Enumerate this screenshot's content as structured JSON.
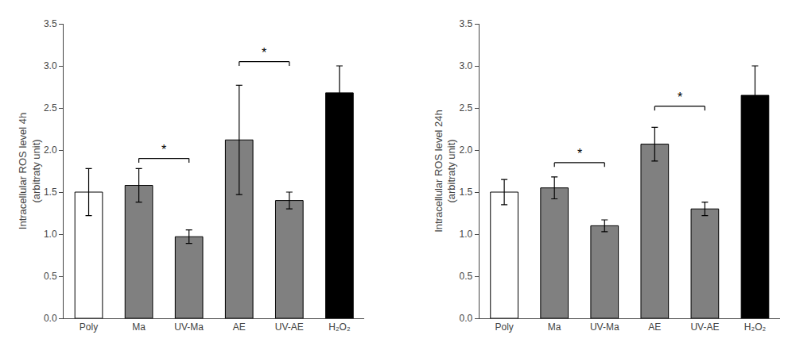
{
  "chart_data": [
    {
      "type": "bar",
      "y_label": "Intracellular ROS level 4h\n(arbitraty unit)",
      "categories": [
        "Poly",
        "Ma",
        "UV-Ma",
        "AE",
        "UV-AE",
        "H₂O₂"
      ],
      "values": [
        1.5,
        1.58,
        0.97,
        2.12,
        1.4,
        2.68
      ],
      "errors": [
        0.28,
        0.2,
        0.08,
        0.65,
        0.1,
        0.32
      ],
      "colors": [
        "#ffffff",
        "#808080",
        "#808080",
        "#808080",
        "#808080",
        "#000000"
      ],
      "ylim": [
        0,
        3.5
      ],
      "yticks": [
        {
          "value": 0,
          "label": "0.0"
        },
        0.5,
        {
          "value": 1,
          "label": "1.0"
        },
        1.5,
        {
          "value": 2,
          "label": "2.0"
        },
        2.5,
        {
          "value": 3,
          "label": "3.0"
        },
        3.5
      ],
      "grid": false,
      "annotations": [
        {
          "text": "*",
          "from": "Ma",
          "to": "UV-Ma",
          "y": 1.9
        },
        {
          "text": "*",
          "from": "AE",
          "to": "UV-AE",
          "y": 3.05
        }
      ]
    },
    {
      "type": "bar",
      "y_label": "Intracellular ROS level 24h\n(arbitraty unit)",
      "categories": [
        "Poly",
        "Ma",
        "UV-Ma",
        "AE",
        "UV-AE",
        "H₂O₂"
      ],
      "values": [
        1.5,
        1.55,
        1.1,
        2.07,
        1.3,
        2.65
      ],
      "errors": [
        0.15,
        0.13,
        0.07,
        0.2,
        0.08,
        0.35
      ],
      "colors": [
        "#ffffff",
        "#808080",
        "#808080",
        "#808080",
        "#808080",
        "#000000"
      ],
      "ylim": [
        0,
        3.5
      ],
      "yticks": [
        {
          "value": 0,
          "label": "0.0"
        },
        0.5,
        {
          "value": 1,
          "label": "1.0"
        },
        1.5,
        {
          "value": 2,
          "label": "2.0"
        },
        2.5,
        {
          "value": 3,
          "label": "3.0"
        },
        3.5
      ],
      "grid": false,
      "annotations": [
        {
          "text": "*",
          "from": "Ma",
          "to": "UV-Ma",
          "y": 1.85
        },
        {
          "text": "*",
          "from": "AE",
          "to": "UV-AE",
          "y": 2.52
        }
      ]
    }
  ]
}
